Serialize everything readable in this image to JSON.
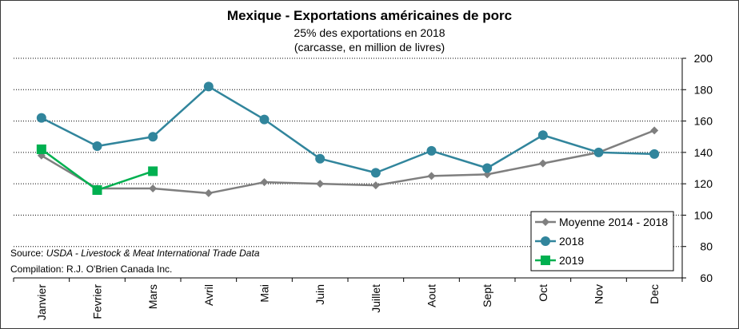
{
  "chart_data": {
    "type": "line",
    "title": "Mexique - Exportations américaines de porc",
    "subtitle_1": "25% des exportations en 2018",
    "subtitle_2": "(carcasse, en million de livres)",
    "categories": [
      "Janvier",
      "Fevrier",
      "Mars",
      "Avril",
      "Mai",
      "Juin",
      "Juillet",
      "Aout",
      "Sept",
      "Oct",
      "Nov",
      "Dec"
    ],
    "yticks": [
      "60",
      "80",
      "100",
      "120",
      "140",
      "160",
      "180",
      "200"
    ],
    "ylim": [
      60,
      200
    ],
    "grid": "horizontal dotted",
    "series": [
      {
        "name": "Moyenne 2014 - 2018",
        "color": "#7f7f7f",
        "marker": "diamond",
        "values": [
          138,
          117,
          117,
          114,
          121,
          120,
          119,
          125,
          126,
          133,
          140,
          154
        ]
      },
      {
        "name": "2018",
        "color": "#31859c",
        "marker": "circle",
        "values": [
          162,
          144,
          150,
          182,
          161,
          136,
          127,
          141,
          130,
          151,
          140,
          139
        ]
      },
      {
        "name": "2019",
        "color": "#00b050",
        "marker": "square",
        "values": [
          142,
          116,
          128,
          null,
          null,
          null,
          null,
          null,
          null,
          null,
          null,
          null
        ]
      }
    ],
    "legend_position": "bottom-right"
  },
  "source": {
    "prefix": "Source: ",
    "text": "USDA - Livestock & Meat International Trade Data"
  },
  "compilation": "Compilation:  R.J. O'Brien Canada Inc."
}
